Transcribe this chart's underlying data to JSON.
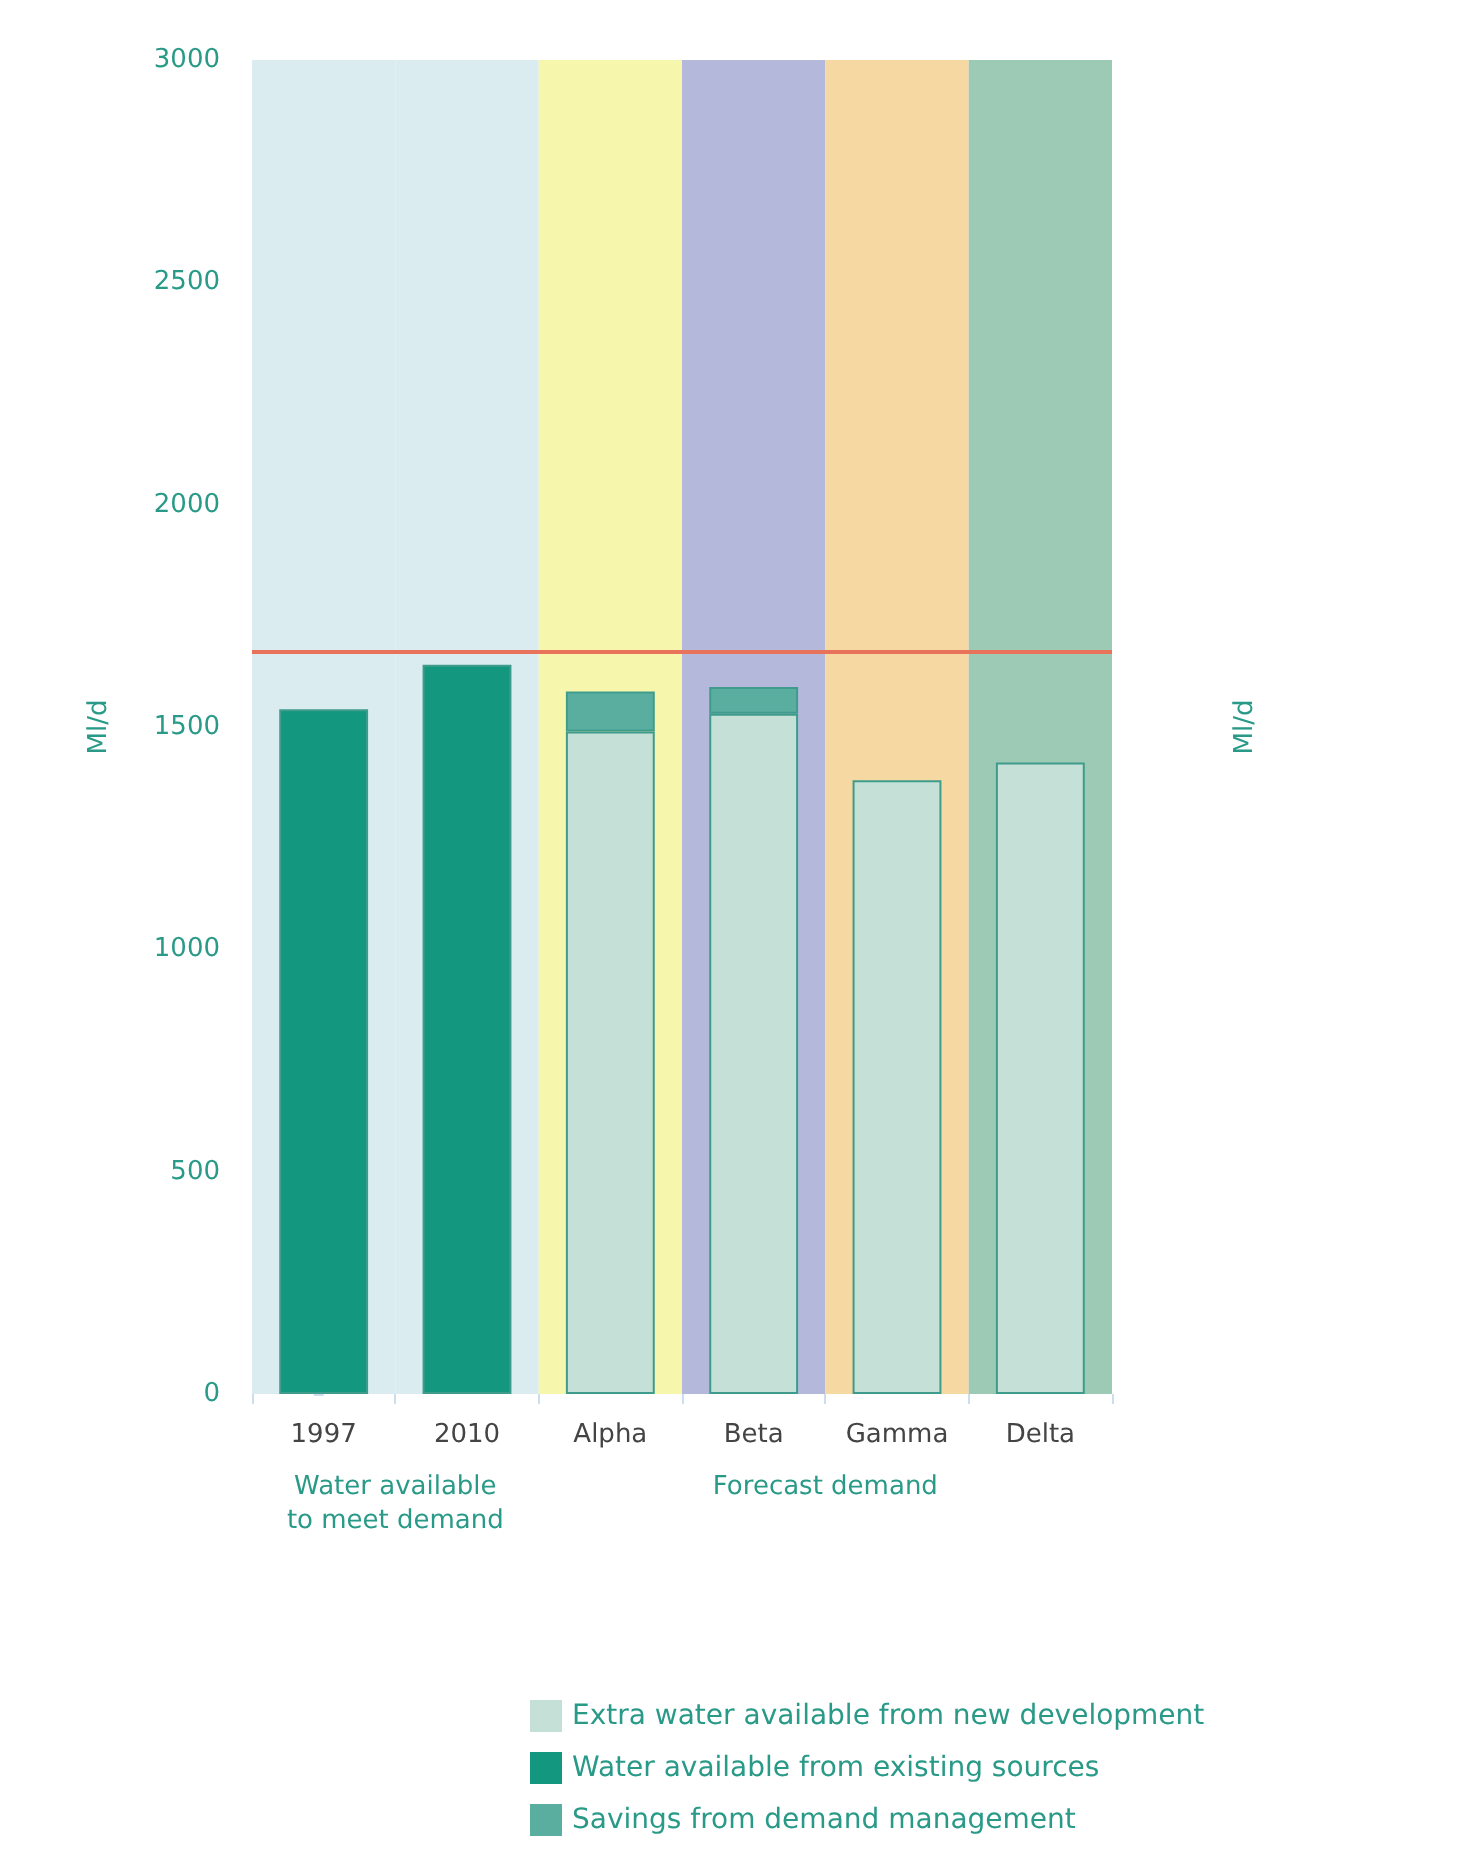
{
  "chart_data": {
    "type": "bar",
    "stacked": true,
    "ylabel": "Ml/d",
    "y2label": "Ml/d",
    "categories": [
      "1997",
      "2010",
      "Alpha",
      "Beta",
      "Gamma",
      "Delta"
    ],
    "series": [
      {
        "name": "Extra water available from new development",
        "color": "#c5e0d6",
        "values": [
          null,
          null,
          1490,
          1530,
          1380,
          1420
        ]
      },
      {
        "name": "Water available from existing sources",
        "color": "#14977f",
        "values": [
          1540,
          1640,
          null,
          null,
          null,
          null
        ]
      },
      {
        "name": "Savings from demand management",
        "color": "#5aaea0",
        "values": [
          null,
          null,
          90,
          60,
          null,
          null
        ]
      }
    ],
    "ylim": [
      0,
      3000
    ],
    "yticks": [
      0,
      500,
      1000,
      1500,
      2000,
      2500,
      3000
    ],
    "ref_lines": [
      {
        "axis": "y",
        "value": 1670,
        "color": "#e8735a"
      }
    ],
    "bands": [
      {
        "axis": "x",
        "from": "1997",
        "to": "1997",
        "color": "#dbecf0"
      },
      {
        "axis": "x",
        "from": "2010",
        "to": "2010",
        "color": "#dbecf0"
      },
      {
        "axis": "x",
        "from": "Alpha",
        "to": "Alpha",
        "color": "#f6f6ac"
      },
      {
        "axis": "x",
        "from": "Beta",
        "to": "Beta",
        "color": "#b4b9dc"
      },
      {
        "axis": "x",
        "from": "Gamma",
        "to": "Gamma",
        "color": "#f6d9a2"
      },
      {
        "axis": "x",
        "from": "Delta",
        "to": "Delta",
        "color": "#9ccab5"
      }
    ],
    "annotations": [
      "Water available\nto meet demand",
      "Forecast demand"
    ],
    "legend": "bottom right",
    "grid": false
  }
}
